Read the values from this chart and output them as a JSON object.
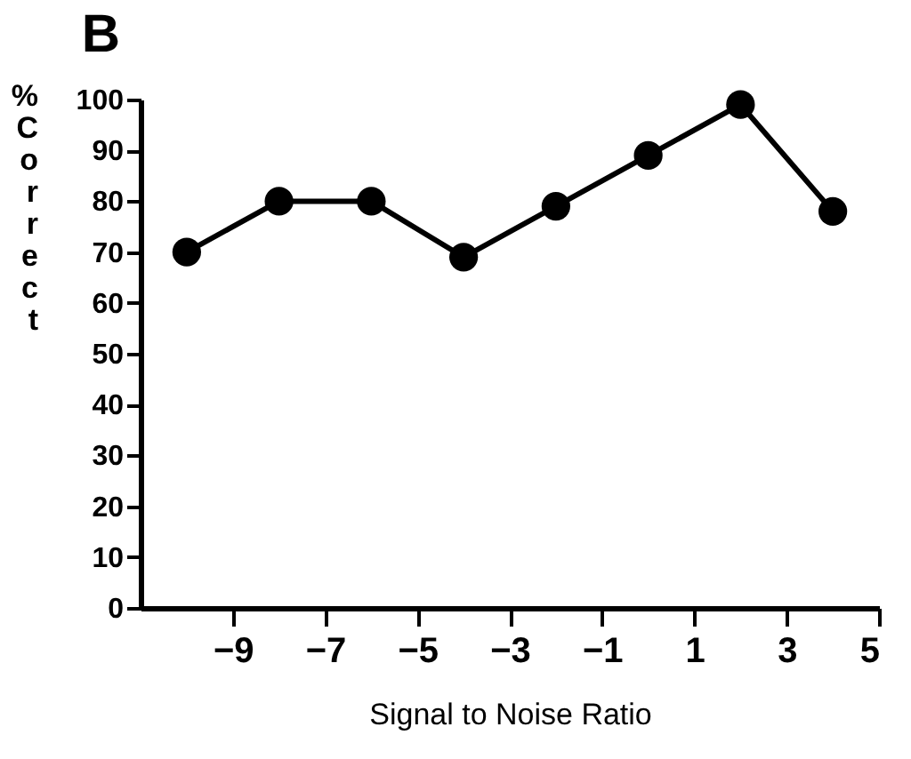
{
  "chart_data": {
    "type": "line",
    "title": "B",
    "xlabel": "Signal to Noise Ratio",
    "ylabel": "% Correct",
    "x": [
      -10,
      -8,
      -6,
      -4,
      -2,
      0,
      2,
      4
    ],
    "series": [
      {
        "color": "#000000",
        "values": [
          70,
          80,
          80,
          69,
          79,
          89,
          99,
          78
        ]
      }
    ],
    "xlim": [
      -11,
      5
    ],
    "xticks": [
      -9,
      -7,
      -5,
      -3,
      -1,
      1,
      3,
      5
    ],
    "ylim": [
      0,
      100
    ],
    "yticks": [
      0,
      10,
      20,
      30,
      40,
      50,
      60,
      70,
      80,
      90,
      100
    ],
    "grid": false,
    "legend": false,
    "marker": "circle",
    "line_style": "solid"
  }
}
